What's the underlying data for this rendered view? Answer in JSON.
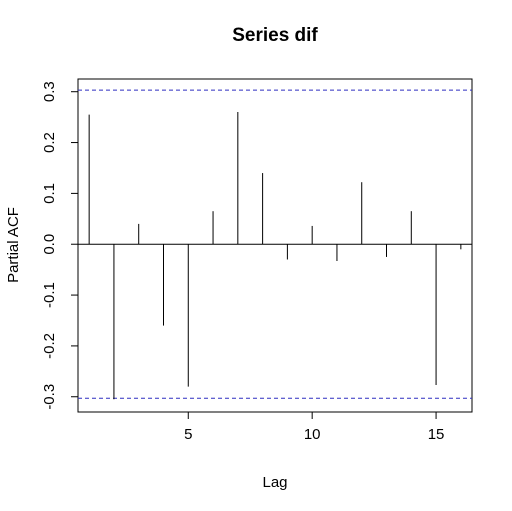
{
  "chart_data": {
    "type": "bar",
    "title": "Series  dif",
    "xlabel": "Lag",
    "ylabel": "Partial ACF",
    "x": [
      1,
      2,
      3,
      4,
      5,
      6,
      7,
      8,
      9,
      10,
      11,
      12,
      13,
      14,
      15,
      16
    ],
    "values": [
      0.255,
      -0.305,
      0.04,
      -0.16,
      -0.28,
      0.065,
      0.26,
      0.14,
      -0.03,
      0.036,
      -0.033,
      0.122,
      -0.025,
      0.065,
      -0.277,
      -0.01
    ],
    "xlim": [
      0.55,
      16.45
    ],
    "ylim": [
      -0.33,
      0.325
    ],
    "xticks": [
      5,
      10,
      15
    ],
    "yticks": [
      -0.3,
      -0.2,
      -0.1,
      0.0,
      0.1,
      0.2,
      0.3
    ],
    "ytick_labels": [
      "-0.3",
      "-0.2",
      "-0.1",
      "0.0",
      "0.1",
      "0.2",
      "0.3"
    ],
    "confidence_bound": 0.303,
    "zero_line": true,
    "grid": false,
    "bound_color": "#2f2fc0",
    "line_color": "#000000"
  }
}
